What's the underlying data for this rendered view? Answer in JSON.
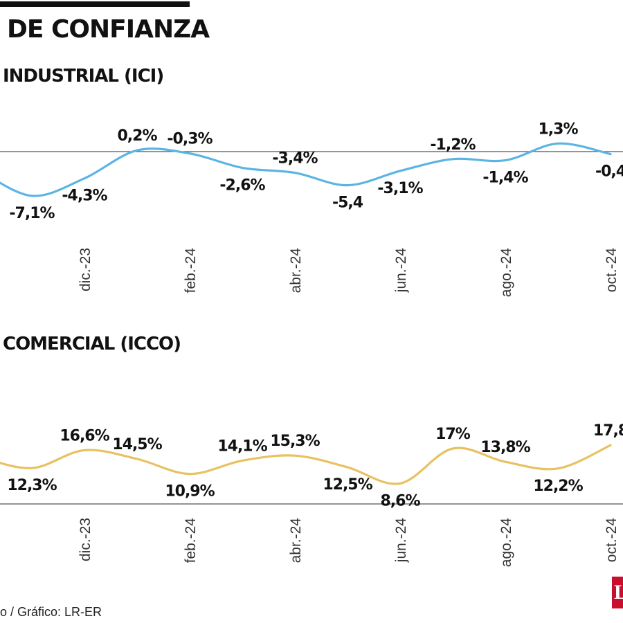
{
  "header": {
    "title": "DE CONFIANZA"
  },
  "source": {
    "text": "o / Gráfico: LR-ER"
  },
  "logo": {
    "name": "red-publication-logo",
    "letter": "L"
  },
  "colors": {
    "ici": "#5bb4e3",
    "icco": "#e8c160",
    "axis": "#555555"
  },
  "chart_data": [
    {
      "type": "line",
      "title": "INDUSTRIAL (ICI)",
      "x_ticks": [
        "dic.-23",
        "feb.-24",
        "abr.-24",
        "jun.-24",
        "ago.-24",
        "oct.-24"
      ],
      "points": [
        {
          "x": "oct.-23",
          "y": -3.0
        },
        {
          "x": "nov.-23",
          "y": -7.1,
          "label": "-7,1%"
        },
        {
          "x": "dic.-23",
          "y": -4.3,
          "label": "-4,3%"
        },
        {
          "x": "ene.-24",
          "y": 0.2,
          "label": "0,2%"
        },
        {
          "x": "feb.-24",
          "y": -0.3,
          "label": "-0,3%"
        },
        {
          "x": "mar.-24",
          "y": -2.6,
          "label": "-2,6%"
        },
        {
          "x": "abr.-24",
          "y": -3.4,
          "label": "-3,4%"
        },
        {
          "x": "may.-24",
          "y": -5.4,
          "label": "-5,4"
        },
        {
          "x": "jun.-24",
          "y": -3.1,
          "label": "-3,1%"
        },
        {
          "x": "jul.-24",
          "y": -1.2,
          "label": "-1,2%"
        },
        {
          "x": "ago.-24",
          "y": -1.4,
          "label": "-1,4%"
        },
        {
          "x": "sep.-24",
          "y": 1.3,
          "label": "1,3%"
        },
        {
          "x": "oct.-24",
          "y": -0.4,
          "label": "-0,4"
        }
      ],
      "zero_line": true
    },
    {
      "type": "line",
      "title": "COMERCIAL (ICCO)",
      "x_ticks": [
        "dic.-23",
        "feb.-24",
        "abr.-24",
        "jun.-24",
        "ago.-24",
        "oct.-24"
      ],
      "points": [
        {
          "x": "oct.-23",
          "y": 15.0
        },
        {
          "x": "nov.-23",
          "y": 12.3,
          "label": "12,3%"
        },
        {
          "x": "dic.-23",
          "y": 16.6,
          "label": "16,6%"
        },
        {
          "x": "ene.-24",
          "y": 14.5,
          "label": "14,5%"
        },
        {
          "x": "feb.-24",
          "y": 10.9,
          "label": "10,9%"
        },
        {
          "x": "mar.-24",
          "y": 14.1,
          "label": "14,1%"
        },
        {
          "x": "abr.-24",
          "y": 15.3,
          "label": "15,3%"
        },
        {
          "x": "may.-24",
          "y": 12.5,
          "label": "12,5%"
        },
        {
          "x": "jun.-24",
          "y": 8.6,
          "label": "8,6%"
        },
        {
          "x": "jul.-24",
          "y": 17.0,
          "label": "17%"
        },
        {
          "x": "ago.-24",
          "y": 13.8,
          "label": "13,8%"
        },
        {
          "x": "sep.-24",
          "y": 12.2,
          "label": "12,2%"
        },
        {
          "x": "oct.-24",
          "y": 17.8,
          "label": "17,8"
        }
      ]
    }
  ]
}
